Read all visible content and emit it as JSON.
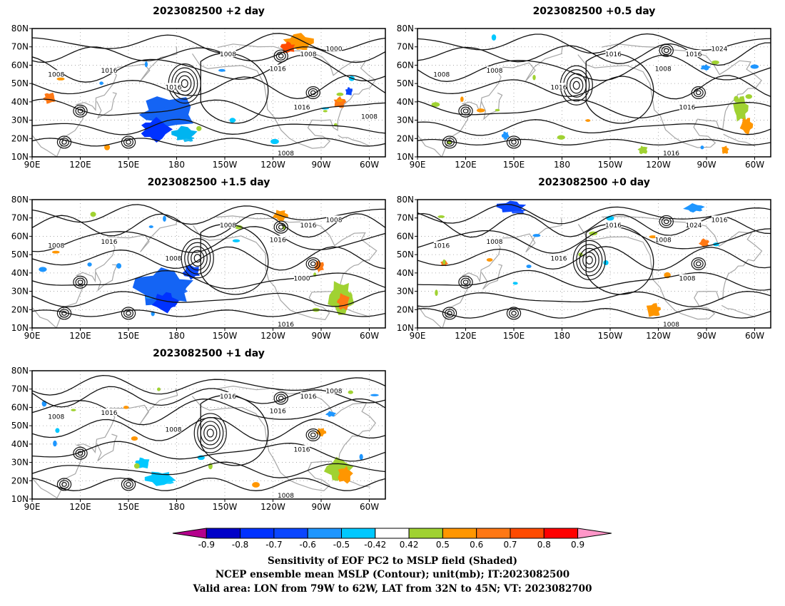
{
  "panels": [
    {
      "title": "2023082500 +2 day",
      "isobar_labels": [
        "1008",
        "1016",
        "1016",
        "1008",
        "1016",
        "1008",
        "1000",
        "1016",
        "1008",
        "1008"
      ],
      "blobs": [
        {
          "lon": 172,
          "lat": 33,
          "rx": 22,
          "ry": 12,
          "color": "#1464f4"
        },
        {
          "lon": 165,
          "lat": 25,
          "rx": 12,
          "ry": 8,
          "color": "#0032ff"
        },
        {
          "lon": 185,
          "lat": 22,
          "rx": 10,
          "ry": 5,
          "color": "#00b4f0"
        },
        {
          "lon": 255,
          "lat": 72,
          "rx": 12,
          "ry": 6,
          "color": "#ff9600"
        },
        {
          "lon": 250,
          "lat": 70,
          "rx": 6,
          "ry": 4,
          "color": "#ff4b00"
        },
        {
          "lon": 100,
          "lat": 42,
          "rx": 5,
          "ry": 4,
          "color": "#ff7814"
        },
        {
          "lon": 281,
          "lat": 40,
          "rx": 5,
          "ry": 4,
          "color": "#ff7814"
        },
        {
          "lon": 287,
          "lat": 46,
          "rx": 3,
          "ry": 3,
          "color": "#0a46ff"
        }
      ]
    },
    {
      "title": "2023082500 +0.5 day",
      "isobar_labels": [
        "1008",
        "1008",
        "1016",
        "1016",
        "1008",
        "1016",
        "1024",
        "1016",
        "1016"
      ],
      "blobs": [
        {
          "lon": 292,
          "lat": 35,
          "rx": 6,
          "ry": 9,
          "color": "#a0d232"
        },
        {
          "lon": 295,
          "lat": 28,
          "rx": 5,
          "ry": 6,
          "color": "#ff9600"
        },
        {
          "lon": 282,
          "lat": 14,
          "rx": 3,
          "ry": 3,
          "color": "#ff9600"
        },
        {
          "lon": 145,
          "lat": 22,
          "rx": 3,
          "ry": 3,
          "color": "#1e96ff"
        },
        {
          "lon": 269,
          "lat": 59,
          "rx": 4,
          "ry": 2,
          "color": "#1e96ff"
        },
        {
          "lon": 230,
          "lat": 14,
          "rx": 4,
          "ry": 3,
          "color": "#a0d232"
        }
      ]
    },
    {
      "title": "2023082500 +1.5 day",
      "isobar_labels": [
        "1008",
        "1016",
        "1008",
        "1008",
        "1016",
        "1016",
        "1008",
        "1000",
        "1016"
      ],
      "blobs": [
        {
          "lon": 175,
          "lat": 32,
          "rx": 24,
          "ry": 13,
          "color": "#1464f4"
        },
        {
          "lon": 172,
          "lat": 25,
          "rx": 10,
          "ry": 7,
          "color": "#0032ff"
        },
        {
          "lon": 190,
          "lat": 40,
          "rx": 7,
          "ry": 5,
          "color": "#0a46ff"
        },
        {
          "lon": 283,
          "lat": 28,
          "rx": 10,
          "ry": 12,
          "color": "#a0d232"
        },
        {
          "lon": 283,
          "lat": 24,
          "rx": 5,
          "ry": 6,
          "color": "#ff7814"
        },
        {
          "lon": 269,
          "lat": 43,
          "rx": 4,
          "ry": 4,
          "color": "#ff7814"
        },
        {
          "lon": 245,
          "lat": 72,
          "rx": 6,
          "ry": 4,
          "color": "#ff9600"
        }
      ]
    },
    {
      "title": "2023082500 +0 day",
      "isobar_labels": [
        "1016",
        "1008",
        "1016",
        "1016",
        "1008",
        "1024",
        "1016",
        "1008",
        "1008"
      ],
      "blobs": [
        {
          "lon": 150,
          "lat": 76,
          "rx": 12,
          "ry": 4,
          "color": "#0a46ff"
        },
        {
          "lon": 263,
          "lat": 75,
          "rx": 8,
          "ry": 3,
          "color": "#1e96ff"
        },
        {
          "lon": 238,
          "lat": 20,
          "rx": 6,
          "ry": 5,
          "color": "#ff9600"
        },
        {
          "lon": 269,
          "lat": 56,
          "rx": 4,
          "ry": 3,
          "color": "#ff7814"
        },
        {
          "lon": 107,
          "lat": 45,
          "rx": 3,
          "ry": 2,
          "color": "#ff7814"
        }
      ]
    },
    {
      "title": "2023082500 +1 day",
      "isobar_labels": [
        "1008",
        "1016",
        "1008",
        "1016",
        "1016",
        "1016",
        "1008",
        "1016",
        "1008"
      ],
      "blobs": [
        {
          "lon": 282,
          "lat": 25,
          "rx": 11,
          "ry": 8,
          "color": "#a0d232"
        },
        {
          "lon": 285,
          "lat": 24,
          "rx": 6,
          "ry": 6,
          "color": "#ff9600"
        },
        {
          "lon": 170,
          "lat": 22,
          "rx": 12,
          "ry": 5,
          "color": "#00c8ff"
        },
        {
          "lon": 158,
          "lat": 30,
          "rx": 6,
          "ry": 4,
          "color": "#00c8ff"
        },
        {
          "lon": 270,
          "lat": 47,
          "rx": 4,
          "ry": 3,
          "color": "#ff9600"
        },
        {
          "lon": 276,
          "lat": 56,
          "rx": 4,
          "ry": 2,
          "color": "#1e96ff"
        }
      ]
    }
  ],
  "lat_labels": [
    "80N",
    "70N",
    "60N",
    "50N",
    "40N",
    "30N",
    "20N",
    "10N"
  ],
  "lon_labels": [
    "90E",
    "120E",
    "150E",
    "180",
    "150W",
    "120W",
    "90W",
    "60W"
  ],
  "colorbar": {
    "colors": [
      "#b4008c",
      "#0000c8",
      "#0032ff",
      "#0a46ff",
      "#1e96ff",
      "#00c8ff",
      "#ffffff",
      "#a0d232",
      "#ff9600",
      "#ff7814",
      "#ff4b00",
      "#ff0000",
      "#ff96c8"
    ],
    "labels": [
      "-0.9",
      "-0.8",
      "-0.7",
      "-0.6",
      "-0.5",
      "-0.42",
      "0.42",
      "0.5",
      "0.6",
      "0.7",
      "0.8",
      "0.9"
    ]
  },
  "caption": {
    "line1": "Sensitivity of EOF PC2 to MSLP field (Shaded)",
    "line2": "NCEP ensemble mean MSLP (Contour); unit(mb); IT:2023082500",
    "line3": "Valid area: LON from 79W to 62W, LAT from 32N to 45N; VT: 2023082700"
  }
}
